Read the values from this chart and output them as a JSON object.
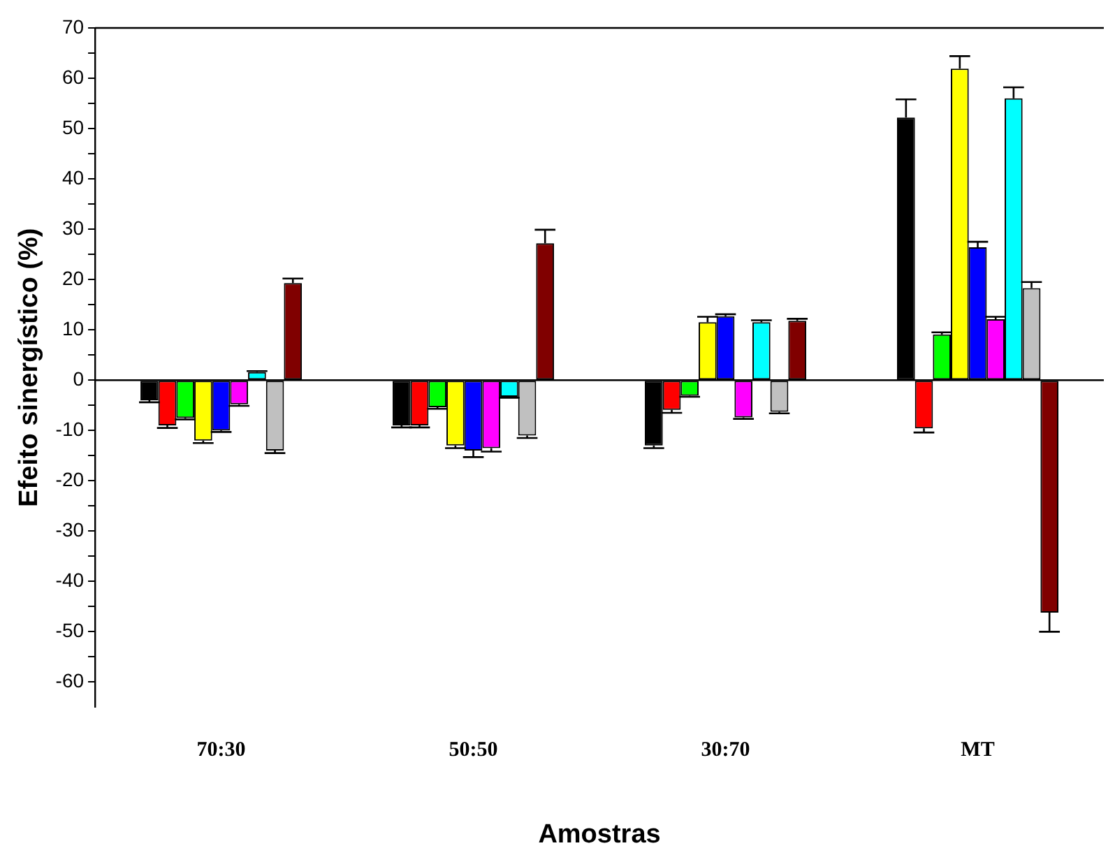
{
  "chart_data": {
    "type": "bar",
    "xlabel": "Amostras",
    "ylabel": "Efeito sinergístico (%)",
    "categories": [
      "70:30",
      "50:50",
      "30:70",
      "MT"
    ],
    "ylim": [
      -65,
      70
    ],
    "yticks": [
      -60,
      {
        "value": -55,
        "label": null
      },
      -50,
      {
        "value": -45,
        "label": null
      },
      -40,
      {
        "value": -35,
        "label": null
      },
      -30,
      {
        "value": -25,
        "label": null
      },
      -20,
      {
        "value": -15,
        "label": null
      },
      -10,
      {
        "value": -5,
        "label": null
      },
      0,
      {
        "value": 5,
        "label": null
      },
      10,
      {
        "value": 15,
        "label": null
      },
      20,
      {
        "value": 25,
        "label": null
      },
      30,
      {
        "value": 35,
        "label": null
      },
      40,
      {
        "value": 45,
        "label": null
      },
      50,
      {
        "value": 55,
        "label": null
      },
      60,
      {
        "value": 65,
        "label": null
      },
      70
    ],
    "grid": false,
    "legend": false,
    "ref_lines": [
      {
        "axis": "y",
        "value": 0,
        "color": "#000000"
      }
    ],
    "series": [
      {
        "color": "#000000",
        "values": [
          -4.0,
          -9.0,
          -13.0,
          52.2
        ],
        "errors": [
          [
            -4.4,
            -4.0
          ],
          [
            -9.4,
            -9.0
          ],
          [
            -13.5,
            -13.0
          ],
          [
            52.2,
            55.8
          ]
        ]
      },
      {
        "color": "#ff0000",
        "values": [
          -9.0,
          -9.0,
          -5.9,
          -9.6
        ],
        "errors": [
          [
            -9.5,
            -9.0
          ],
          [
            -9.4,
            -9.0
          ],
          [
            -6.5,
            -5.9
          ],
          [
            -10.4,
            -9.6
          ]
        ]
      },
      {
        "color": "#00ff00",
        "values": [
          -7.5,
          -5.4,
          -3.1,
          9.1
        ],
        "errors": [
          [
            -7.8,
            -7.5
          ],
          [
            -5.7,
            -5.4
          ],
          [
            -3.3,
            -3.1
          ],
          [
            9.1,
            9.5
          ]
        ]
      },
      {
        "color": "#ffff00",
        "values": [
          -12.0,
          -13.0,
          11.5,
          61.9
        ],
        "errors": [
          [
            -12.5,
            -12.0
          ],
          [
            -13.5,
            -13.0
          ],
          [
            11.5,
            12.6
          ],
          [
            61.9,
            64.4
          ]
        ]
      },
      {
        "color": "#0000ff",
        "values": [
          -10.0,
          -14.0,
          12.7,
          26.4
        ],
        "errors": [
          [
            -10.3,
            -10.0
          ],
          [
            -15.3,
            -14.0
          ],
          [
            12.7,
            13.1
          ],
          [
            26.4,
            27.5
          ]
        ]
      },
      {
        "color": "#ff00ff",
        "values": [
          -4.8,
          -13.5,
          -7.4,
          12.1
        ],
        "errors": [
          [
            -5.1,
            -4.8
          ],
          [
            -14.2,
            -13.5
          ],
          [
            -7.7,
            -7.4
          ],
          [
            12.1,
            12.6
          ]
        ]
      },
      {
        "color": "#00ffff",
        "values": [
          1.6,
          -3.3,
          11.5,
          56.0
        ],
        "errors": [
          [
            1.6,
            1.8
          ],
          [
            -3.5,
            -3.3
          ],
          [
            11.5,
            11.9
          ],
          [
            56.0,
            58.2
          ]
        ]
      },
      {
        "color": "#c0c0c0",
        "values": [
          -14.0,
          -11.0,
          -6.3,
          18.3
        ],
        "errors": [
          [
            -14.5,
            -14.0
          ],
          [
            -11.5,
            -11.0
          ],
          [
            -6.6,
            -6.3
          ],
          [
            18.3,
            19.5
          ]
        ]
      },
      {
        "color": "#800000",
        "values": [
          19.3,
          27.2,
          11.8,
          -46.2
        ],
        "errors": [
          [
            19.3,
            20.2
          ],
          [
            27.2,
            29.9
          ],
          [
            11.8,
            12.2
          ],
          [
            -50.0,
            -46.2
          ]
        ]
      }
    ]
  }
}
